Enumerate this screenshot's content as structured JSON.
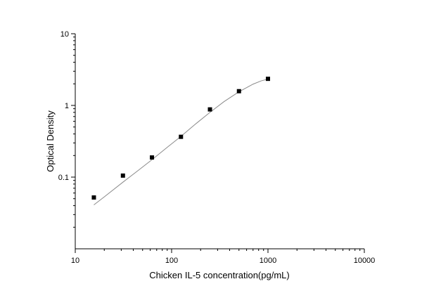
{
  "chart_data": {
    "type": "scatter",
    "xlabel": "Chicken IL-5 concentration(pg/mL)",
    "ylabel": "Optical Density",
    "x_scale": "log",
    "y_scale": "log",
    "xlim": [
      10,
      10000
    ],
    "ylim": [
      0.01,
      10
    ],
    "x_ticks": [
      "10",
      "100",
      "1000",
      "10000"
    ],
    "y_ticks": [
      "0.1",
      "1",
      "10"
    ],
    "grid": false,
    "series": [
      {
        "type": "scatter",
        "x": [
          15.6,
          31.25,
          62.5,
          125,
          250,
          500,
          1000
        ],
        "y": [
          0.052,
          0.105,
          0.188,
          0.365,
          0.88,
          1.58,
          2.35
        ]
      },
      {
        "type": "line",
        "x": [
          15.6,
          20,
          31.25,
          45,
          62.5,
          90,
          125,
          180,
          250,
          350,
          500,
          700,
          850,
          1000
        ],
        "y": [
          0.041,
          0.053,
          0.085,
          0.124,
          0.175,
          0.26,
          0.37,
          0.56,
          0.8,
          1.13,
          1.55,
          1.98,
          2.2,
          2.33
        ]
      }
    ]
  }
}
